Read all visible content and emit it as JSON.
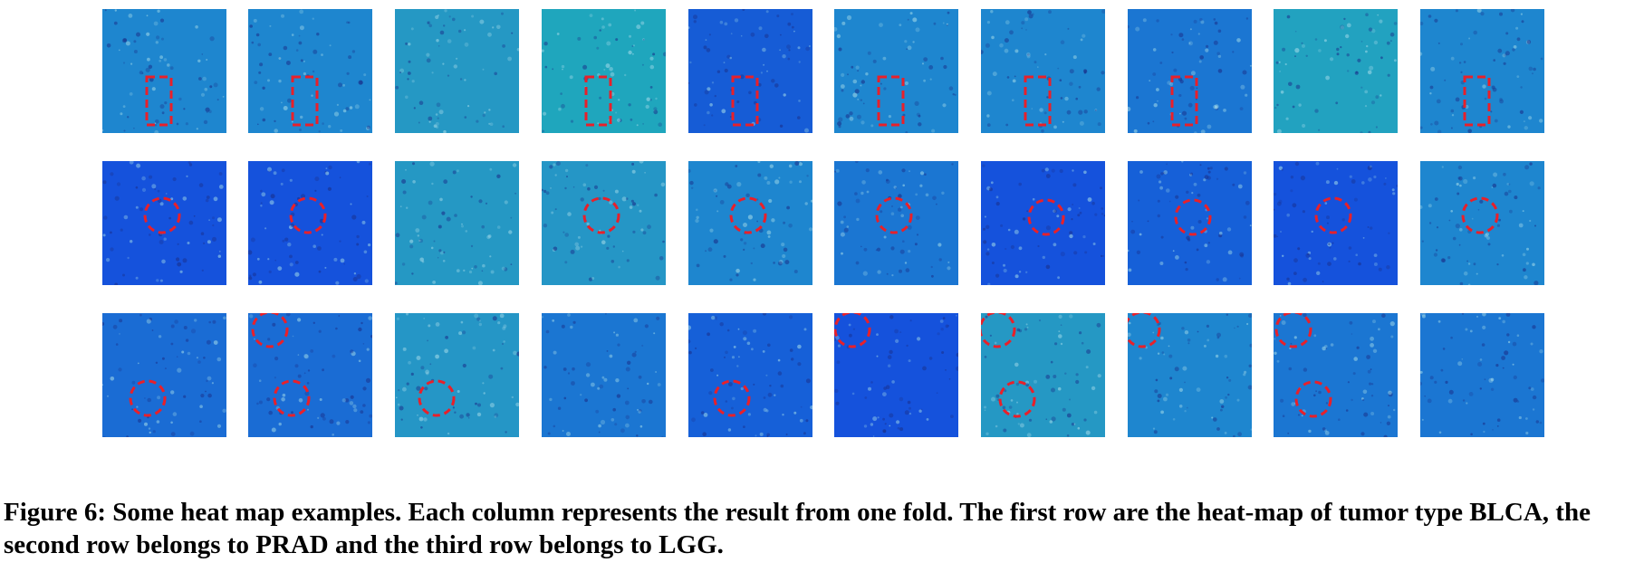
{
  "figure": {
    "number_label": "Figure 6:",
    "caption_text": "Some heat map examples. Each column represents the result from one fold. The first row are the heat-map of tumor type BLCA, the second row belongs to PRAD and the third row belongs to LGG.",
    "colors": {
      "marker": "#e8202a",
      "speckle_dark": "#1a2f8a",
      "speckle_light": "#9fd8e8"
    },
    "rows": [
      {
        "tumor_type": "BLCA",
        "marker_shape": "dashed-rectangle",
        "tiles": [
          {
            "fold": 1,
            "bg": "#1e86cf",
            "markers": 1
          },
          {
            "fold": 2,
            "bg": "#1e86cf",
            "markers": 1
          },
          {
            "fold": 3,
            "bg": "#2598c4",
            "markers": 0
          },
          {
            "fold": 4,
            "bg": "#1fa6bd",
            "markers": 1
          },
          {
            "fold": 5,
            "bg": "#165cd6",
            "markers": 1
          },
          {
            "fold": 6,
            "bg": "#1e86cf",
            "markers": 1
          },
          {
            "fold": 7,
            "bg": "#1e86cf",
            "markers": 1
          },
          {
            "fold": 8,
            "bg": "#1b76d2",
            "markers": 1
          },
          {
            "fold": 9,
            "bg": "#22a2c0",
            "markers": 0
          },
          {
            "fold": 10,
            "bg": "#1e86cf",
            "markers": 1
          }
        ]
      },
      {
        "tumor_type": "PRAD",
        "marker_shape": "dashed-circle",
        "tiles": [
          {
            "fold": 1,
            "bg": "#1552dc",
            "markers": 1
          },
          {
            "fold": 2,
            "bg": "#1552dc",
            "markers": 1
          },
          {
            "fold": 3,
            "bg": "#2598c4",
            "markers": 0
          },
          {
            "fold": 4,
            "bg": "#2596c6",
            "markers": 1
          },
          {
            "fold": 5,
            "bg": "#1e86cf",
            "markers": 1
          },
          {
            "fold": 6,
            "bg": "#1b76d2",
            "markers": 1
          },
          {
            "fold": 7,
            "bg": "#1552dc",
            "markers": 1
          },
          {
            "fold": 8,
            "bg": "#1660d8",
            "markers": 1
          },
          {
            "fold": 9,
            "bg": "#1552dc",
            "markers": 1
          },
          {
            "fold": 10,
            "bg": "#1e86cf",
            "markers": 1
          }
        ]
      },
      {
        "tumor_type": "LGG",
        "marker_shape": "dashed-circle",
        "tiles": [
          {
            "fold": 1,
            "bg": "#1a6cd4",
            "markers": 1
          },
          {
            "fold": 2,
            "bg": "#1a6cd4",
            "markers": 2
          },
          {
            "fold": 3,
            "bg": "#2596c6",
            "markers": 1
          },
          {
            "fold": 4,
            "bg": "#1b76d2",
            "markers": 0
          },
          {
            "fold": 5,
            "bg": "#1660d8",
            "markers": 1
          },
          {
            "fold": 6,
            "bg": "#1552dc",
            "markers": 1
          },
          {
            "fold": 7,
            "bg": "#2598c4",
            "markers": 2
          },
          {
            "fold": 8,
            "bg": "#1e86cf",
            "markers": 1
          },
          {
            "fold": 9,
            "bg": "#1b76d2",
            "markers": 2
          },
          {
            "fold": 10,
            "bg": "#1b76d2",
            "markers": 0
          }
        ]
      }
    ]
  }
}
